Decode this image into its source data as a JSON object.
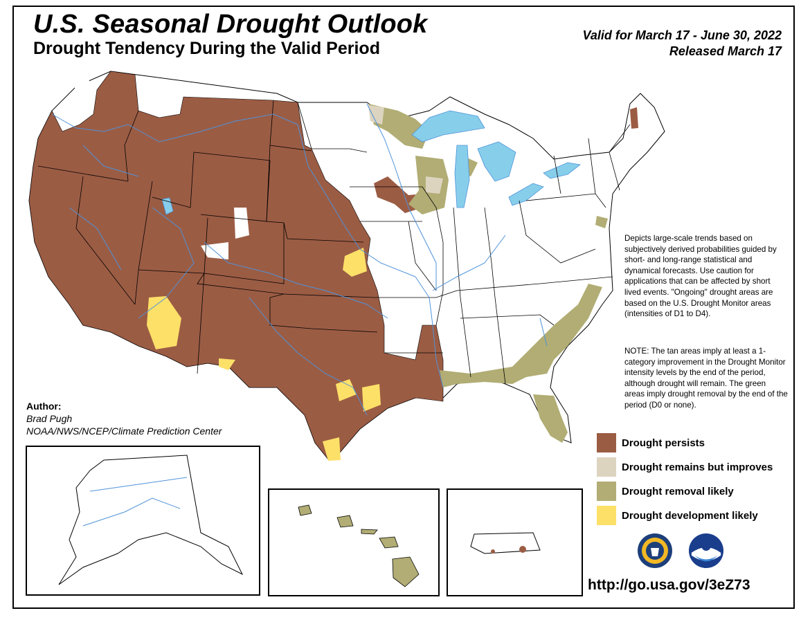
{
  "header": {
    "title": "U.S. Seasonal Drought Outlook",
    "subtitle": "Drought Tendency During the Valid Period",
    "valid_line": "Valid for March 17 - June 30, 2022",
    "released_line": "Released March 17"
  },
  "description": "Depicts large-scale trends based on subjectively derived probabilities guided by short- and long-range statistical and dynamical forecasts. Use caution for applications that can be affected by short lived events. \"Ongoing\" drought areas are based on the U.S. Drought Monitor areas (intensities of D1 to D4).",
  "note": "NOTE: The tan areas imply at least a 1-category improvement in the Drought Monitor intensity levels by the end of the period, although drought will remain. The green areas imply drought removal by the end of the period (D0 or none).",
  "legend": [
    {
      "label": "Drought persists",
      "color": "#9b5c44"
    },
    {
      "label": "Drought remains but improves",
      "color": "#ddd4c0"
    },
    {
      "label": "Drought removal likely",
      "color": "#b1ad74"
    },
    {
      "label": "Drought development likely",
      "color": "#fde068"
    }
  ],
  "author": {
    "label": "Author:",
    "name": "Brad Pugh",
    "org": "NOAA/NWS/NCEP/Climate Prediction Center"
  },
  "url": "http://go.usa.gov/3eZ73",
  "colors": {
    "water": "#87ceeb",
    "rivers": "#4f93d9",
    "border": "#000000"
  },
  "logos": [
    "doc-seal-icon",
    "noaa-logo-icon"
  ]
}
